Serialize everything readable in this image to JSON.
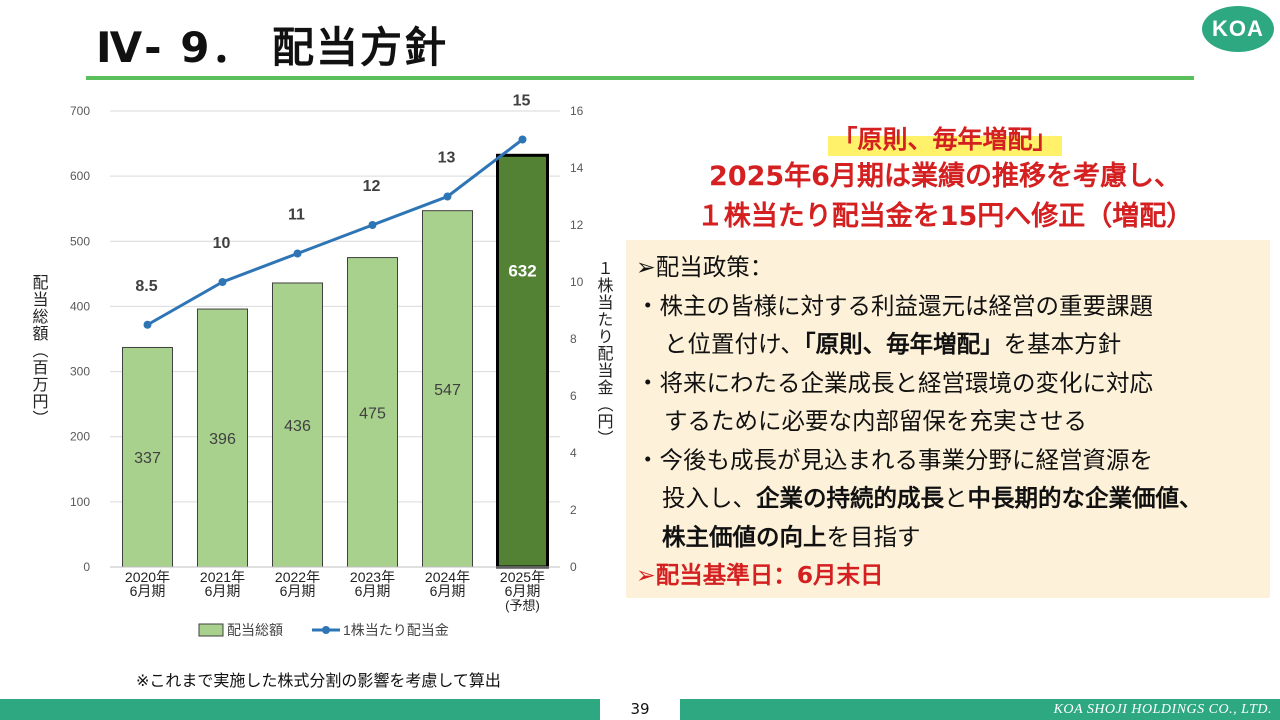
{
  "header": {
    "title": "Ⅳ- 9． 配当方針",
    "logo_text": "KOA"
  },
  "chart_data": {
    "type": "bar",
    "categories": [
      [
        "2020年",
        "6月期"
      ],
      [
        "2021年",
        "6月期"
      ],
      [
        "2022年",
        "6月期"
      ],
      [
        "2023年",
        "6月期"
      ],
      [
        "2024年",
        "6月期"
      ],
      [
        "2025年",
        "6月期",
        "(予想)"
      ]
    ],
    "series": [
      {
        "name": "配当総額",
        "type": "bar",
        "axis": "left",
        "values": [
          337,
          396,
          436,
          475,
          547,
          632
        ],
        "labels": [
          "337",
          "396",
          "436",
          "475",
          "547",
          "632"
        ]
      },
      {
        "name": "1株当たり配当金",
        "type": "line",
        "axis": "right",
        "values": [
          8.5,
          10,
          11,
          12,
          13,
          15
        ],
        "labels": [
          "8.5",
          "10",
          "11",
          "12",
          "13",
          "15"
        ]
      }
    ],
    "ylabel": "配当総額（百万円）",
    "y2label": "１株当たり配当金（円）",
    "ylim": [
      0,
      700
    ],
    "y2lim": [
      0,
      16
    ],
    "yticks": [
      "0",
      "100",
      "200",
      "300",
      "400",
      "500",
      "600",
      "700"
    ],
    "y2ticks": [
      "0",
      "2",
      "4",
      "6",
      "8",
      "10",
      "12",
      "14",
      "16"
    ],
    "grid": true,
    "legend_position": "bottom",
    "colors": {
      "bar": "#a9d18e",
      "bar_highlight": "#548235",
      "line": "#2e75b6",
      "label_dark": "#404040"
    }
  },
  "footnote": "※これまで実施した株式分割の影響を考慮して算出",
  "headline": {
    "line1": "「原則、毎年増配」",
    "line2": "2025年6月期は業績の推移を考慮し、",
    "line3": "１株当たり配当金を15円へ修正（増配）"
  },
  "policy": {
    "heading": "➢配当政策：",
    "b1_l1": "・株主の皆様に対する利益還元は経営の重要課題",
    "b1_l2_a": "と位置付け、",
    "b1_l2_b": "「原則、毎年増配」",
    "b1_l2_c": "を基本方針",
    "b2_l1": "・将来にわたる企業成長と経営環境の変化に対応",
    "b2_l2": "するために必要な内部留保を充実させる",
    "b3_l1": "・今後も成長が見込まれる事業分野に経営資源を",
    "b3_l2_a": "投入し、",
    "b3_l2_b": "企業の持続的成長",
    "b3_l2_c": "と",
    "b3_l2_d": "中長期的な企業価値、",
    "b3_l3_a": "株主価値の向上",
    "b3_l3_b": "を目指す",
    "record_date": "➢配当基準日：6月末日"
  },
  "footer": {
    "page": "39",
    "company": "KOA SHOJI HOLDINGS CO., LTD."
  }
}
